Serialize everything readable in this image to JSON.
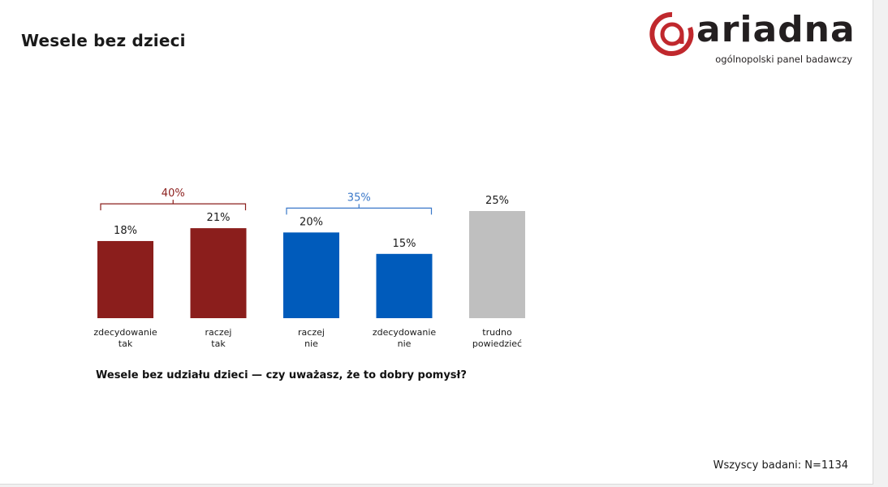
{
  "title": "Wesele bez dzieci",
  "logo": {
    "word": "ariadna",
    "tagline": "ogólnopolski panel badawczy"
  },
  "footnote": "Wszyscy badani: N=1134",
  "colors": {
    "red": "#8b1e1c",
    "blue": "#005bbb",
    "gray": "#bfbfbf",
    "logo_red": "#c0282d"
  },
  "chart_data": {
    "type": "bar",
    "title": "Wesele bez udziału dzieci — czy uważasz, że to dobry pomysł?",
    "categories": [
      [
        "zdecydowanie",
        "tak"
      ],
      [
        "raczej",
        "tak"
      ],
      [
        "raczej",
        "nie"
      ],
      [
        "zdecydowanie",
        "nie"
      ],
      [
        "trudno",
        "powiedzieć"
      ]
    ],
    "values": [
      18,
      21,
      20,
      15,
      25
    ],
    "value_labels": [
      "18%",
      "21%",
      "20%",
      "15%",
      "25%"
    ],
    "bar_colors": [
      "#8b1e1c",
      "#8b1e1c",
      "#005bbb",
      "#005bbb",
      "#bfbfbf"
    ],
    "groups": [
      {
        "label": "40%",
        "from": 0,
        "to": 1,
        "color": "#8b1e1c"
      },
      {
        "label": "35%",
        "from": 2,
        "to": 3,
        "color": "#3a78c9"
      }
    ],
    "ylim": [
      0,
      25
    ],
    "grid": false,
    "xlabel": "",
    "ylabel": ""
  }
}
